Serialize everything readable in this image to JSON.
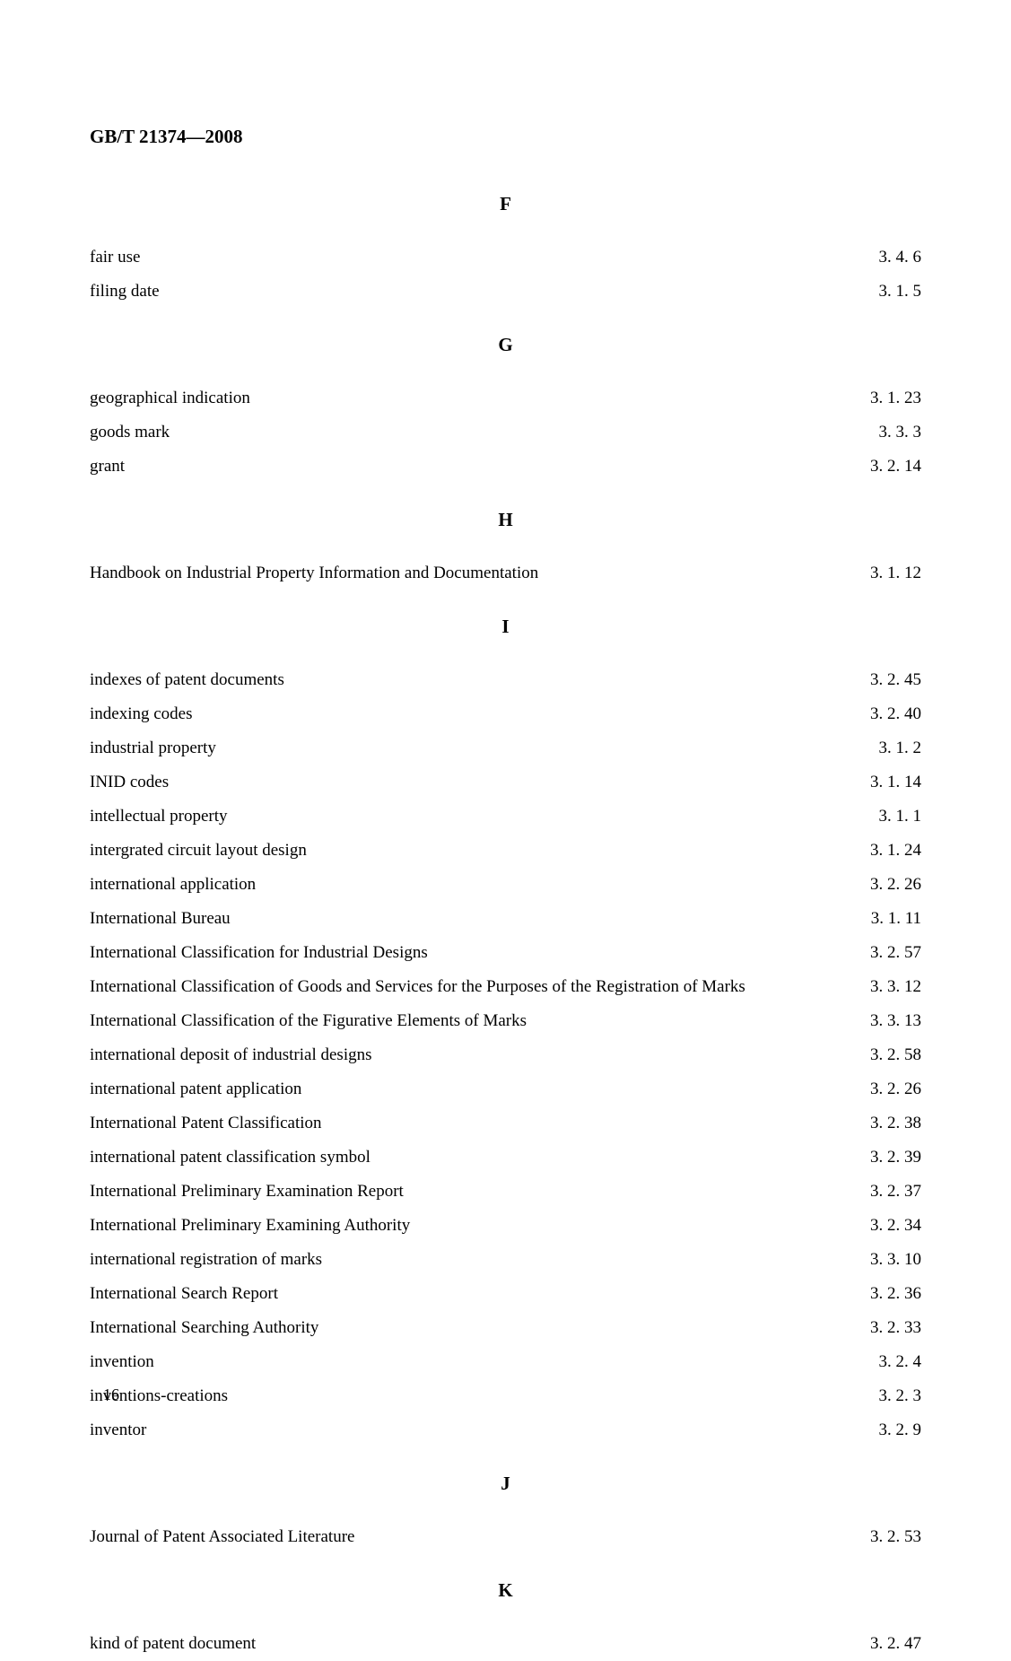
{
  "header": "GB/T 21374—2008",
  "page_number": "16",
  "sections": [
    {
      "heading": "F",
      "entries": [
        {
          "term": "fair use",
          "ref": "3. 4. 6"
        },
        {
          "term": "filing date",
          "ref": "3. 1. 5"
        }
      ]
    },
    {
      "heading": "G",
      "entries": [
        {
          "term": "geographical indication",
          "ref": "3. 1. 23"
        },
        {
          "term": "goods mark",
          "ref": "3. 3. 3"
        },
        {
          "term": "grant",
          "ref": "3. 2. 14"
        }
      ]
    },
    {
      "heading": "H",
      "entries": [
        {
          "term": "Handbook on Industrial Property Information and Documentation",
          "ref": "3. 1. 12"
        }
      ]
    },
    {
      "heading": "I",
      "entries": [
        {
          "term": "indexes of patent documents",
          "ref": "3. 2. 45"
        },
        {
          "term": "indexing codes",
          "ref": "3. 2. 40"
        },
        {
          "term": "industrial property",
          "ref": "3. 1. 2"
        },
        {
          "term": "INID codes",
          "ref": "3. 1. 14"
        },
        {
          "term": "intellectual property",
          "ref": "3. 1. 1"
        },
        {
          "term": "intergrated circuit layout design",
          "ref": "3. 1. 24"
        },
        {
          "term": "international application",
          "ref": "3. 2. 26"
        },
        {
          "term": "International Bureau",
          "ref": "3. 1. 11"
        },
        {
          "term": "International Classification for Industrial Designs",
          "ref": "3. 2. 57"
        },
        {
          "term": "International Classification of Goods and Services for the Purposes of the Registration of Marks",
          "ref": "3. 3. 12"
        },
        {
          "term": "International Classification of the Figurative Elements of Marks",
          "ref": "3. 3. 13"
        },
        {
          "term": "international deposit of industrial designs",
          "ref": "3. 2. 58"
        },
        {
          "term": "international patent application",
          "ref": "3. 2. 26"
        },
        {
          "term": "International Patent Classification",
          "ref": "3. 2. 38"
        },
        {
          "term": "international patent classification symbol",
          "ref": "3. 2. 39"
        },
        {
          "term": "International Preliminary Examination Report",
          "ref": "3. 2. 37"
        },
        {
          "term": "International Preliminary Examining Authority",
          "ref": "3. 2. 34"
        },
        {
          "term": "international registration of marks",
          "ref": "3. 3. 10"
        },
        {
          "term": "International Search Report",
          "ref": "3. 2. 36"
        },
        {
          "term": "International Searching Authority",
          "ref": "3. 2. 33"
        },
        {
          "term": "invention",
          "ref": "3. 2. 4"
        },
        {
          "term": "inventions-creations",
          "ref": "3. 2. 3"
        },
        {
          "term": "inventor",
          "ref": "3. 2. 9"
        }
      ]
    },
    {
      "heading": "J",
      "entries": [
        {
          "term": "Journal of Patent Associated Literature",
          "ref": "3. 2. 53"
        }
      ]
    },
    {
      "heading": "K",
      "entries": [
        {
          "term": "kind of patent document",
          "ref": "3. 2. 47"
        }
      ]
    }
  ]
}
